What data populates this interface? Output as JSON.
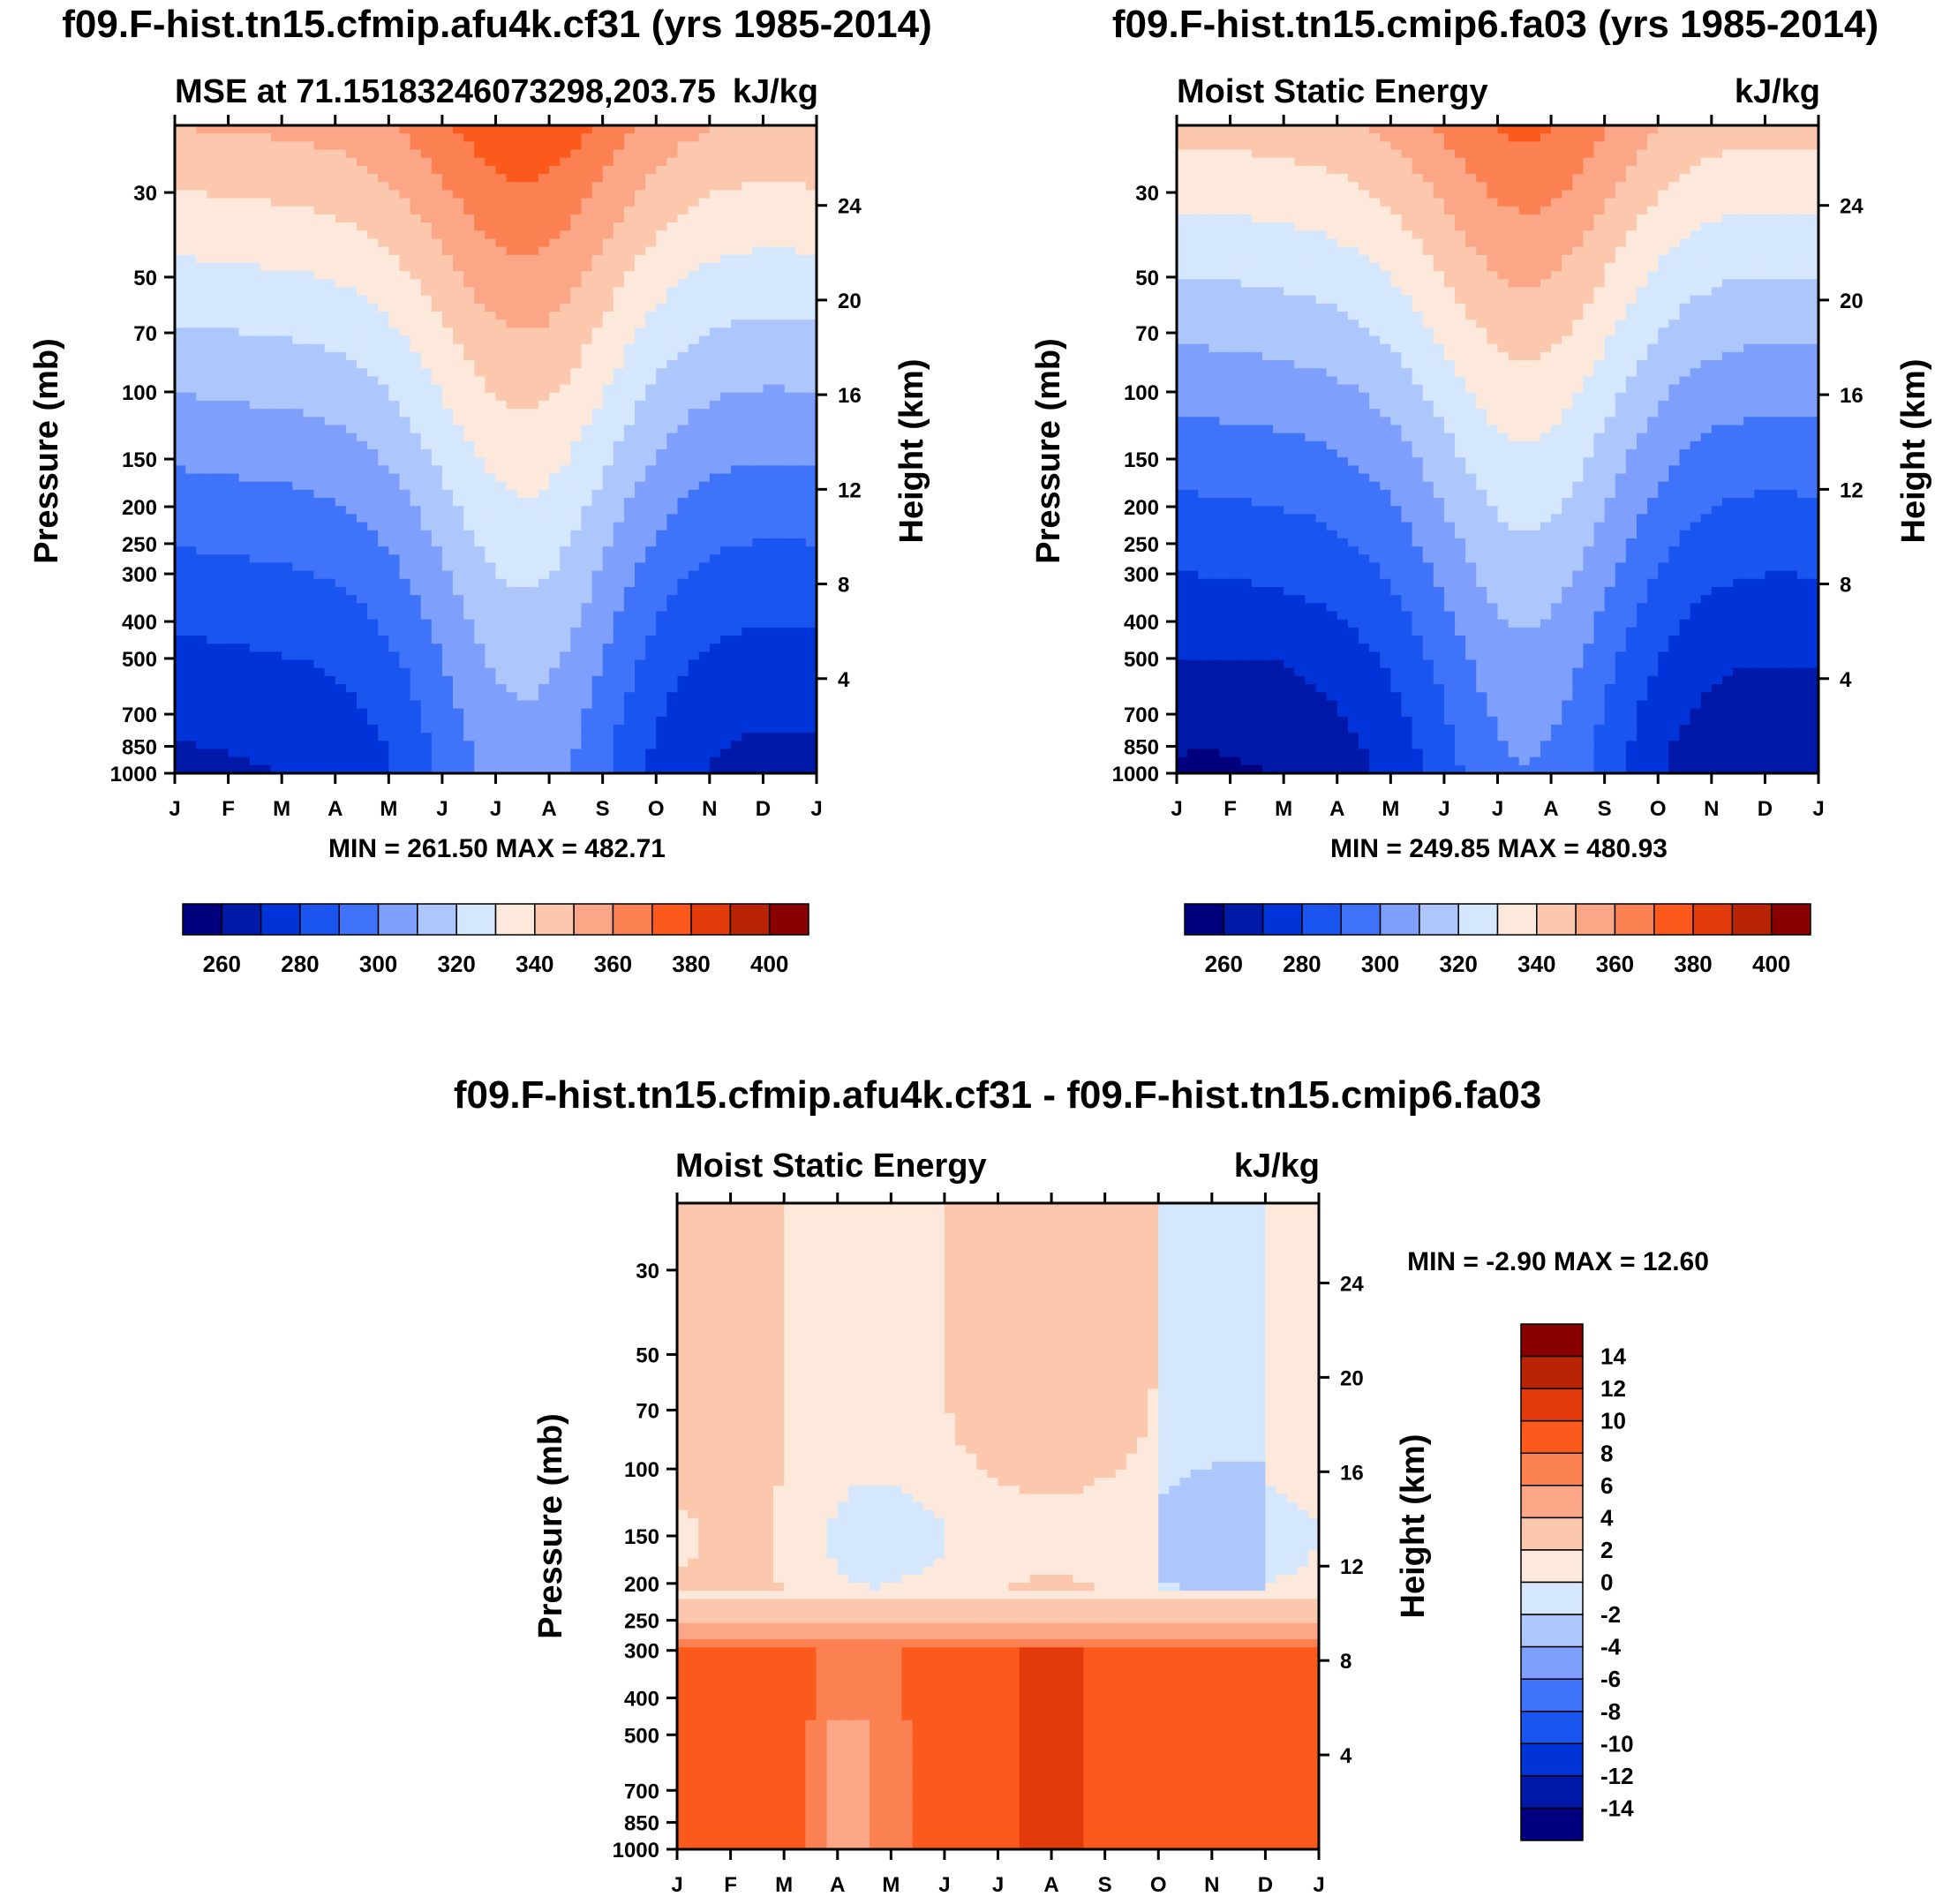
{
  "palette": [
    "#00007f",
    "#0019a8",
    "#0034d8",
    "#1a55f0",
    "#3f74fa",
    "#7e9ffb",
    "#adc6fb",
    "#d5e7fd",
    "#fde9dc",
    "#fcc8ad",
    "#fba686",
    "#fb8152",
    "#fb5a1c",
    "#e33a0b",
    "#b92504",
    "#880000"
  ],
  "panels": [
    {
      "title": "f09.F-hist.tn15.cfmip.afu4k.cf31 (yrs 1985-2014)",
      "left_label": "MSE at 71.15183246073298,203.75",
      "right_label": "kJ/kg",
      "minmax": "MIN = 261.50 MAX = 482.71",
      "kind": "abs_a"
    },
    {
      "title": "f09.F-hist.tn15.cmip6.fa03 (yrs 1985-2014)",
      "left_label": "Moist Static Energy",
      "right_label": "kJ/kg",
      "minmax": "MIN = 249.85 MAX = 480.93",
      "kind": "abs_b"
    },
    {
      "title": "f09.F-hist.tn15.cfmip.afu4k.cf31 - f09.F-hist.tn15.cmip6.fa03",
      "left_label": "Moist Static Energy",
      "right_label": "kJ/kg",
      "minmax": "MIN =  -2.90 MAX =  12.60",
      "kind": "diff"
    }
  ],
  "months": [
    "J",
    "F",
    "M",
    "A",
    "M",
    "J",
    "J",
    "A",
    "S",
    "O",
    "N",
    "D",
    "J"
  ],
  "pressure_ticks": [
    30,
    50,
    70,
    100,
    150,
    200,
    250,
    300,
    400,
    500,
    700,
    850,
    1000
  ],
  "height_ticks": [
    24,
    20,
    16,
    12,
    8,
    4
  ],
  "y_left_title": "Pressure (mb)",
  "y_right_title": "Height (km)",
  "abs_colorbar_labels": [
    "260",
    "280",
    "300",
    "320",
    "340",
    "360",
    "380",
    "400"
  ],
  "diff_colorbar_labels": [
    "14",
    "12",
    "10",
    "8",
    "6",
    "4",
    "2",
    "0",
    "-2",
    "-4",
    "-6",
    "-8",
    "-10",
    "-12",
    "-14"
  ],
  "chart_data": [
    {
      "type": "heatmap",
      "title": "f09.F-hist.tn15.cfmip.afu4k.cf31 (yrs 1985-2014)",
      "subtitle": "MSE at 71.15183246073298,203.75",
      "units": "kJ/kg",
      "x": [
        "J",
        "F",
        "M",
        "A",
        "M",
        "J",
        "J",
        "A",
        "S",
        "O",
        "N",
        "D",
        "J"
      ],
      "y_pressure_mb": [
        30,
        50,
        70,
        100,
        150,
        200,
        250,
        300,
        400,
        500,
        700,
        850,
        1000
      ],
      "levels": [
        250,
        260,
        270,
        280,
        290,
        300,
        310,
        320,
        330,
        340,
        350,
        360,
        370,
        380,
        390,
        400
      ],
      "min": 261.5,
      "max": 482.71,
      "yrange_mb": [
        20,
        1000
      ],
      "xlabel": "",
      "ylabel": "Pressure (mb)",
      "ylabel_right": "Height (km)"
    },
    {
      "type": "heatmap",
      "title": "f09.F-hist.tn15.cmip6.fa03 (yrs 1985-2014)",
      "subtitle": "Moist Static Energy",
      "units": "kJ/kg",
      "x": [
        "J",
        "F",
        "M",
        "A",
        "M",
        "J",
        "J",
        "A",
        "S",
        "O",
        "N",
        "D",
        "J"
      ],
      "y_pressure_mb": [
        30,
        50,
        70,
        100,
        150,
        200,
        250,
        300,
        400,
        500,
        700,
        850,
        1000
      ],
      "levels": [
        250,
        260,
        270,
        280,
        290,
        300,
        310,
        320,
        330,
        340,
        350,
        360,
        370,
        380,
        390,
        400
      ],
      "min": 249.85,
      "max": 480.93,
      "yrange_mb": [
        20,
        1000
      ],
      "xlabel": "",
      "ylabel": "Pressure (mb)",
      "ylabel_right": "Height (km)"
    },
    {
      "type": "heatmap",
      "title": "f09.F-hist.tn15.cfmip.afu4k.cf31 - f09.F-hist.tn15.cmip6.fa03",
      "subtitle": "Moist Static Energy",
      "units": "kJ/kg",
      "x": [
        "J",
        "F",
        "M",
        "A",
        "M",
        "J",
        "J",
        "A",
        "S",
        "O",
        "N",
        "D",
        "J"
      ],
      "y_pressure_mb": [
        30,
        50,
        70,
        100,
        150,
        200,
        250,
        300,
        400,
        500,
        700,
        850,
        1000
      ],
      "levels": [
        -14,
        -12,
        -10,
        -8,
        -6,
        -4,
        -2,
        0,
        2,
        4,
        6,
        8,
        10,
        12,
        14
      ],
      "min": -2.9,
      "max": 12.6,
      "yrange_mb": [
        20,
        1000
      ],
      "xlabel": "",
      "ylabel": "Pressure (mb)",
      "ylabel_right": "Height (km)"
    }
  ]
}
